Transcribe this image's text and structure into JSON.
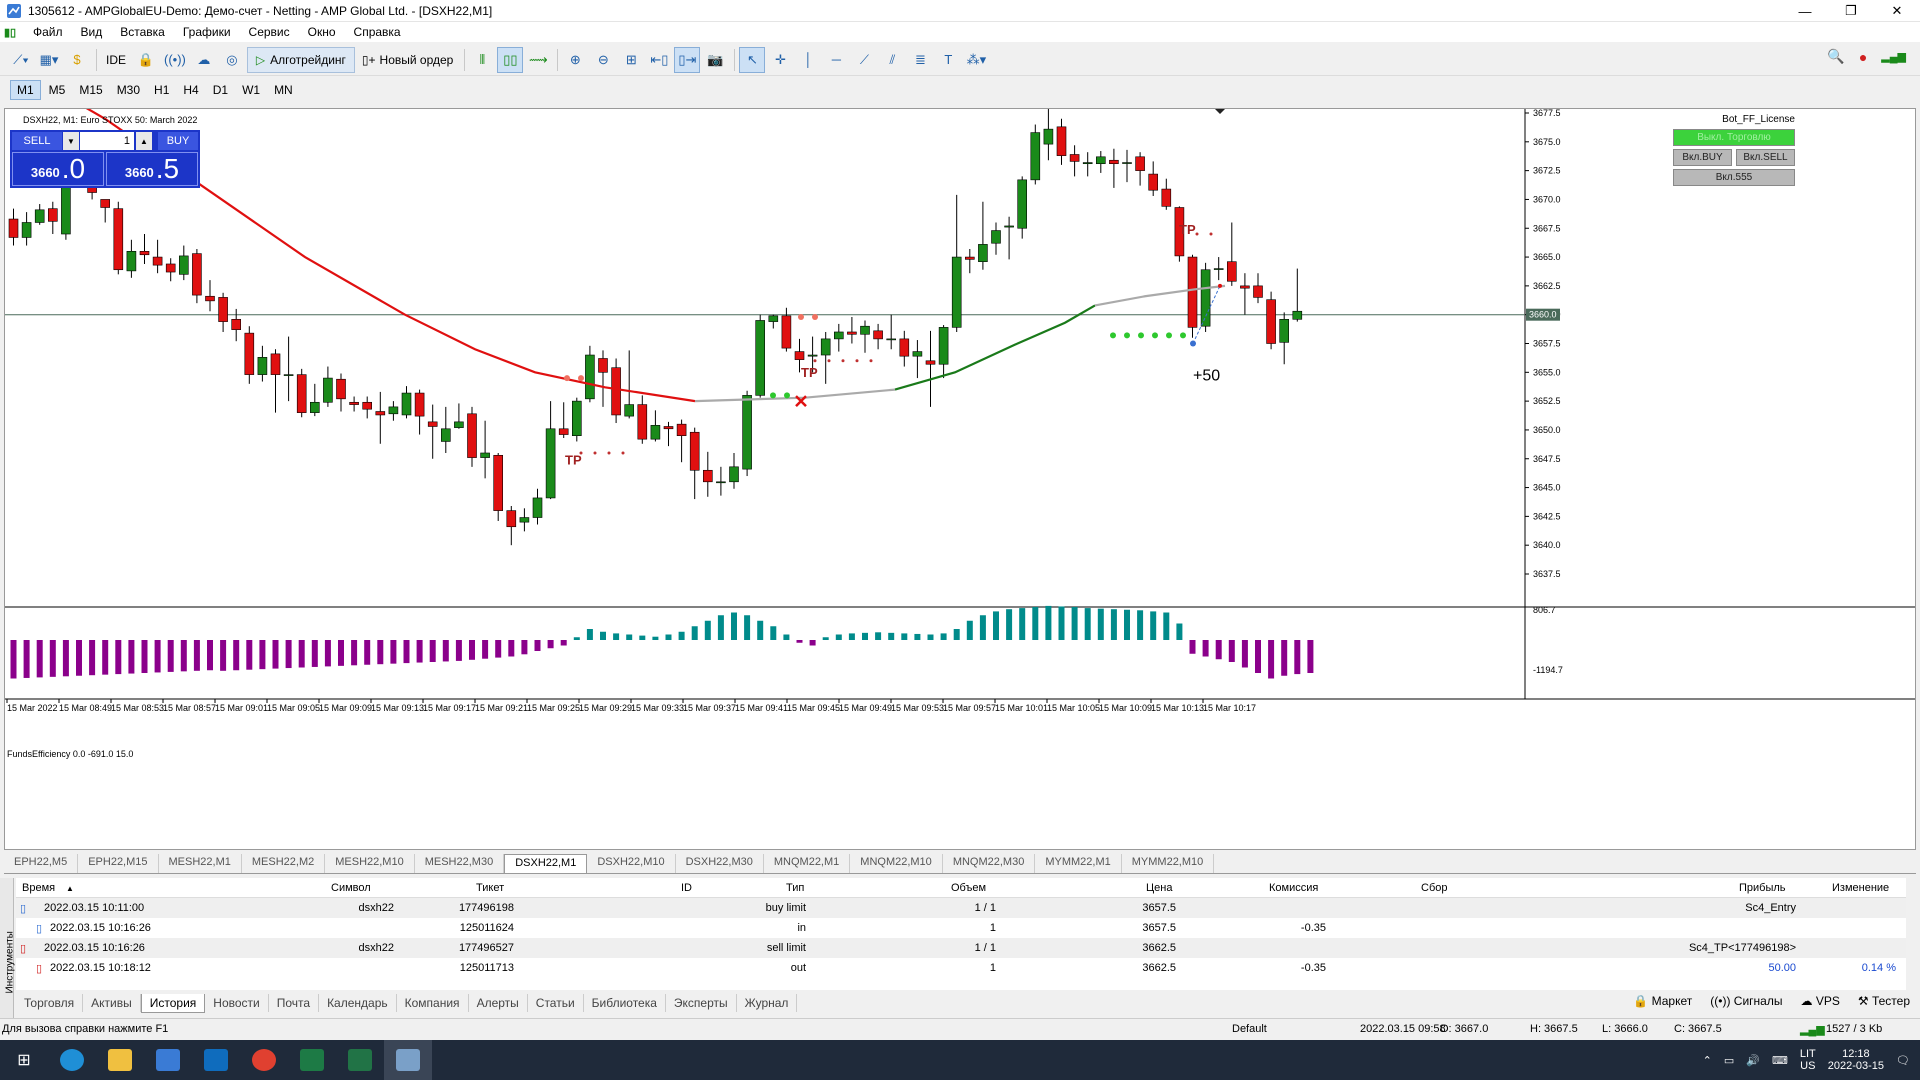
{
  "window": {
    "title": "1305612 - AMPGlobalEU-Demo: Демо-счет - Netting - AMP Global Ltd. - [DSXH22,M1]",
    "minimize": "—",
    "restore": "❐",
    "close": "✕"
  },
  "menu": [
    "Файл",
    "Вид",
    "Вставка",
    "Графики",
    "Сервис",
    "Окно",
    "Справка"
  ],
  "toolbar": {
    "ide": "IDE",
    "algo": "Алготрейдинг",
    "new_order": "Новый ордер"
  },
  "timeframes": [
    "M1",
    "M5",
    "M15",
    "M30",
    "H1",
    "H4",
    "D1",
    "W1",
    "MN"
  ],
  "chart": {
    "symbol_label": "DSXH22, M1:  Euro STOXX 50: March 2022",
    "trade": {
      "sell": "SELL",
      "buy": "BUY",
      "volume": "1",
      "sell_big": "3660",
      "sell_last": ".0",
      "buy_big": "3660",
      "buy_last": ".5"
    },
    "bot": {
      "license": "Bot_FF_License",
      "trade_off": "Выкл. Торговлю",
      "buy_on": "Вкл.BUY",
      "sell_on": "Вкл.SELL",
      "on555": "Вкл.555"
    },
    "annotations": {
      "tp1": "TP",
      "tp2": "TP",
      "tp3": "TP",
      "profit": "+50"
    },
    "price_axis": [
      "3677.5",
      "3675.0",
      "3672.5",
      "3670.0",
      "3667.5",
      "3665.0",
      "3662.5",
      "3660.0",
      "3657.5",
      "3655.0",
      "3652.5",
      "3650.0",
      "3647.5",
      "3645.0",
      "3642.5",
      "3640.0",
      "3637.5"
    ],
    "current_price": "3660.0",
    "indicator_label": "FundsEfficiency 0.0 -691.0 15.0",
    "indicator_axis": {
      "top": "806.7",
      "bottom": "-1194.7"
    },
    "time_axis": [
      "15 Mar 2022",
      "15 Mar 08:49",
      "15 Mar 08:53",
      "15 Mar 08:57",
      "15 Mar 09:01",
      "15 Mar 09:05",
      "15 Mar 09:09",
      "15 Mar 09:13",
      "15 Mar 09:17",
      "15 Mar 09:21",
      "15 Mar 09:25",
      "15 Mar 09:29",
      "15 Mar 09:33",
      "15 Mar 09:37",
      "15 Mar 09:41",
      "15 Mar 09:45",
      "15 Mar 09:49",
      "15 Mar 09:53",
      "15 Mar 09:57",
      "15 Mar 10:01",
      "15 Mar 10:05",
      "15 Mar 10:09",
      "15 Mar 10:13",
      "15 Mar 10:17"
    ]
  },
  "chart_tabs": [
    "EPH22,M5",
    "EPH22,M15",
    "MESH22,M1",
    "MESH22,M2",
    "MESH22,M10",
    "MESH22,M30",
    "DSXH22,M1",
    "DSXH22,M10",
    "DSXH22,M30",
    "MNQM22,M1",
    "MNQM22,M10",
    "MNQM22,M30",
    "MYMM22,M1",
    "MYMM22,M10"
  ],
  "history": {
    "headers": {
      "time": "Время",
      "symbol": "Символ",
      "ticket": "Тикет",
      "id": "ID",
      "type": "Тип",
      "volume": "Объем",
      "price": "Цена",
      "commission": "Комиссия",
      "fee": "Сбор",
      "profit": "Прибыль",
      "change": "Изменение"
    },
    "rows": [
      {
        "time": "2022.03.15 10:11:00",
        "symbol": "dsxh22",
        "ticket": "177496198",
        "type": "buy limit",
        "volume": "1 / 1",
        "price": "3657.5",
        "commission": "",
        "profit": "Sc4_Entry",
        "change": ""
      },
      {
        "time": "2022.03.15 10:16:26",
        "symbol": "",
        "ticket": "125011624",
        "type": "in",
        "volume": "1",
        "price": "3657.5",
        "commission": "-0.35",
        "profit": "",
        "change": ""
      },
      {
        "time": "2022.03.15 10:16:26",
        "symbol": "dsxh22",
        "ticket": "177496527",
        "type": "sell limit",
        "volume": "1 / 1",
        "price": "3662.5",
        "commission": "",
        "profit": "Sc4_TP<177496198>",
        "change": ""
      },
      {
        "time": "2022.03.15 10:18:12",
        "symbol": "",
        "ticket": "125011713",
        "type": "out",
        "volume": "1",
        "price": "3662.5",
        "commission": "-0.35",
        "profit": "50.00",
        "change": "0.14 %"
      }
    ]
  },
  "side_tab": "Инструменты",
  "bottom_tabs": [
    "Торговля",
    "Активы",
    "История",
    "Новости",
    "Почта",
    "Календарь",
    "Компания",
    "Алерты",
    "Статьи",
    "Библиотека",
    "Эксперты",
    "Журнал"
  ],
  "bottom_right": [
    "Маркет",
    "Сигналы",
    "VPS",
    "Тестер"
  ],
  "status": {
    "help": "Для вызова справки нажмите F1",
    "profile": "Default",
    "datetime": "2022.03.15 09:58",
    "open": "O: 3667.0",
    "high": "H: 3667.5",
    "low": "L: 3666.0",
    "close": "C: 3667.5",
    "traffic": "1527 / 3 Kb"
  },
  "taskbar": {
    "lang": "LIT",
    "layout": "US",
    "time": "12:18",
    "date": "2022-03-15"
  },
  "colors": {
    "bull": "#1a8a1a",
    "bear": "#e01010",
    "ma_red": "#e01010",
    "ma_green": "#1a7a1a",
    "ma_gray": "#aaaaaa",
    "hist_pos": "#008b8b",
    "hist_neg": "#8b008b"
  }
}
